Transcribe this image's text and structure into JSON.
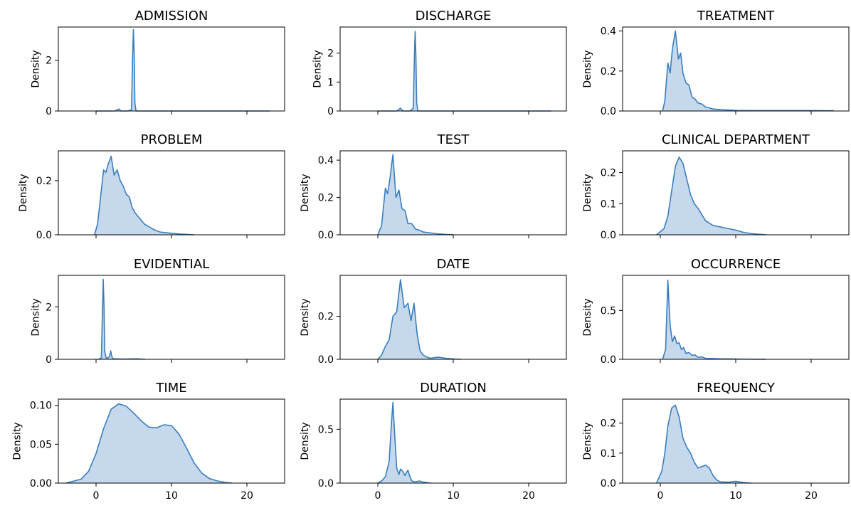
{
  "chart_data": {
    "type": "area",
    "layout": {
      "rows": 4,
      "cols": 3
    },
    "shared_x": {
      "range": [
        -5,
        25
      ],
      "ticks": [
        0,
        10,
        20
      ]
    },
    "ylabel": "Density",
    "color": "#3a7ebf",
    "fill_color": "#c5d8ec",
    "panels": [
      {
        "title": "ADMISSION",
        "ylim": [
          0,
          3.3
        ],
        "yticks": [
          0,
          2
        ],
        "ytick_labels": [
          "0",
          "2"
        ],
        "x": [
          0,
          2.5,
          2.8,
          3.0,
          3.3,
          4.2,
          4.7,
          4.85,
          4.95,
          5.05,
          5.15,
          5.3,
          5.8,
          23
        ],
        "y": [
          0,
          0,
          0.04,
          0.08,
          0,
          0,
          0.05,
          2.2,
          3.2,
          2.3,
          0.3,
          0,
          0,
          0
        ]
      },
      {
        "title": "DISCHARGE",
        "ylim": [
          0,
          2.9
        ],
        "yticks": [
          0,
          1,
          2
        ],
        "ytick_labels": [
          "0",
          "1",
          "2"
        ],
        "x": [
          0,
          2.5,
          2.8,
          3.0,
          3.3,
          4.3,
          4.7,
          4.85,
          4.95,
          5.05,
          5.15,
          5.3,
          5.8,
          23
        ],
        "y": [
          0,
          0,
          0.05,
          0.1,
          0,
          0,
          0.1,
          1.9,
          2.75,
          1.9,
          0.3,
          0,
          0,
          0
        ]
      },
      {
        "title": "TREATMENT",
        "ylim": [
          0,
          0.42
        ],
        "yticks": [
          0,
          0.2,
          0.4
        ],
        "ytick_labels": [
          "0.0",
          "0.2",
          "0.4"
        ],
        "x": [
          0.3,
          0.6,
          1.0,
          1.3,
          1.6,
          2.0,
          2.4,
          2.7,
          3.0,
          3.4,
          3.8,
          4.2,
          4.6,
          5.0,
          5.5,
          6.0,
          6.5,
          7.0,
          8.0,
          9.0,
          10.0,
          12.0,
          15.0,
          20.0,
          23.0
        ],
        "y": [
          0,
          0.05,
          0.24,
          0.19,
          0.31,
          0.4,
          0.26,
          0.29,
          0.19,
          0.14,
          0.13,
          0.07,
          0.06,
          0.04,
          0.035,
          0.02,
          0.015,
          0.01,
          0.007,
          0.005,
          0.003,
          0.002,
          0.002,
          0.002,
          0.001
        ]
      },
      {
        "title": "PROBLEM",
        "ylim": [
          0,
          0.31
        ],
        "yticks": [
          0,
          0.2
        ],
        "ytick_labels": [
          "0.0",
          "0.2"
        ],
        "x": [
          -0.2,
          0.2,
          0.6,
          1.0,
          1.3,
          1.6,
          2.0,
          2.4,
          2.8,
          3.2,
          3.6,
          4.0,
          4.4,
          4.8,
          5.2,
          5.8,
          6.4,
          7.0,
          7.6,
          8.5,
          9.5,
          11.0,
          13.0
        ],
        "y": [
          0,
          0.04,
          0.14,
          0.24,
          0.23,
          0.26,
          0.29,
          0.22,
          0.24,
          0.2,
          0.18,
          0.15,
          0.14,
          0.1,
          0.08,
          0.06,
          0.04,
          0.03,
          0.02,
          0.01,
          0.007,
          0.003,
          0
        ]
      },
      {
        "title": "TEST",
        "ylim": [
          0,
          0.45
        ],
        "yticks": [
          0,
          0.2,
          0.4
        ],
        "ytick_labels": [
          "0.0",
          "0.2",
          "0.4"
        ],
        "x": [
          0,
          0.5,
          1.0,
          1.3,
          1.6,
          2.0,
          2.4,
          2.8,
          3.2,
          3.6,
          4.0,
          4.5,
          5.0,
          5.5,
          6.0,
          7.0,
          8.0,
          9.0,
          10.0
        ],
        "y": [
          0,
          0.05,
          0.25,
          0.22,
          0.3,
          0.43,
          0.2,
          0.24,
          0.14,
          0.13,
          0.06,
          0.06,
          0.03,
          0.025,
          0.015,
          0.01,
          0.005,
          0.002,
          0
        ]
      },
      {
        "title": "CLINICAL DEPARTMENT",
        "ylim": [
          0,
          0.27
        ],
        "yticks": [
          0,
          0.1,
          0.2
        ],
        "ytick_labels": [
          "0.0",
          "0.1",
          "0.2"
        ],
        "x": [
          -0.5,
          0.5,
          1.0,
          1.5,
          2.0,
          2.5,
          3.0,
          3.5,
          4.0,
          4.5,
          5.0,
          5.5,
          6.0,
          7.0,
          8.0,
          9.0,
          10.0,
          11.0,
          12.0,
          13.0,
          14.0
        ],
        "y": [
          0,
          0.02,
          0.06,
          0.14,
          0.22,
          0.25,
          0.23,
          0.18,
          0.13,
          0.1,
          0.085,
          0.065,
          0.045,
          0.03,
          0.025,
          0.02,
          0.015,
          0.008,
          0.004,
          0.002,
          0
        ]
      },
      {
        "title": "EVIDENTIAL",
        "ylim": [
          0,
          3.2
        ],
        "yticks": [
          0,
          2
        ],
        "ytick_labels": [
          "0",
          "2"
        ],
        "x": [
          0.3,
          0.7,
          0.85,
          0.95,
          1.05,
          1.15,
          1.35,
          1.6,
          1.8,
          1.95,
          2.05,
          2.2,
          2.5,
          3.5,
          4.5,
          5.5,
          6.5
        ],
        "y": [
          0,
          0.05,
          1.8,
          3.05,
          2.1,
          0.3,
          0.05,
          0.05,
          0.12,
          0.32,
          0.15,
          0.03,
          0.02,
          0.01,
          0.015,
          0.02,
          0
        ]
      },
      {
        "title": "DATE",
        "ylim": [
          0,
          0.39
        ],
        "yticks": [
          0,
          0.2
        ],
        "ytick_labels": [
          "0.0",
          "0.2"
        ],
        "x": [
          0,
          0.5,
          1.0,
          1.5,
          2.0,
          2.5,
          3.0,
          3.5,
          4.0,
          4.4,
          4.8,
          5.2,
          5.6,
          6.0,
          6.5,
          7.0,
          8.0,
          9.0,
          10.0,
          11.0
        ],
        "y": [
          0,
          0.02,
          0.06,
          0.09,
          0.2,
          0.22,
          0.37,
          0.24,
          0.26,
          0.18,
          0.26,
          0.12,
          0.04,
          0.02,
          0.01,
          0.005,
          0.01,
          0.005,
          0.002,
          0
        ]
      },
      {
        "title": "OCCURRENCE",
        "ylim": [
          0,
          0.86
        ],
        "yticks": [
          0,
          0.5
        ],
        "ytick_labels": [
          "0.0",
          "0.5"
        ],
        "x": [
          0.3,
          0.7,
          1.0,
          1.3,
          1.6,
          1.9,
          2.2,
          2.5,
          2.8,
          3.1,
          3.4,
          3.8,
          4.2,
          4.6,
          5.0,
          5.5,
          6.0,
          7.0,
          8.0,
          10.0,
          12.0,
          14.0
        ],
        "y": [
          0,
          0.1,
          0.81,
          0.35,
          0.18,
          0.24,
          0.16,
          0.17,
          0.1,
          0.12,
          0.06,
          0.07,
          0.04,
          0.045,
          0.02,
          0.025,
          0.01,
          0.008,
          0.005,
          0.003,
          0.001,
          0
        ]
      },
      {
        "title": "TIME",
        "ylim": [
          0,
          0.108
        ],
        "yticks": [
          0,
          0.05,
          0.1
        ],
        "ytick_labels": [
          "0.00",
          "0.05",
          "0.10"
        ],
        "x": [
          -4.0,
          -2.0,
          -1.0,
          0.0,
          1.0,
          2.0,
          3.0,
          4.0,
          5.0,
          6.0,
          7.0,
          8.0,
          9.0,
          10.0,
          11.0,
          12.0,
          13.0,
          14.0,
          15.0,
          16.0,
          17.0,
          18.0
        ],
        "y": [
          0,
          0.005,
          0.015,
          0.038,
          0.07,
          0.095,
          0.102,
          0.099,
          0.09,
          0.08,
          0.072,
          0.071,
          0.075,
          0.074,
          0.063,
          0.045,
          0.026,
          0.013,
          0.006,
          0.003,
          0.001,
          0
        ]
      },
      {
        "title": "DURATION",
        "ylim": [
          0,
          0.78
        ],
        "yticks": [
          0,
          0.5
        ],
        "ytick_labels": [
          "0.0",
          "0.5"
        ],
        "x": [
          0,
          0.5,
          1.0,
          1.5,
          1.8,
          2.0,
          2.2,
          2.5,
          2.8,
          3.0,
          3.3,
          3.6,
          3.8,
          4.0,
          4.2,
          4.5,
          5.0,
          5.5,
          6.0,
          7.0
        ],
        "y": [
          0,
          0.02,
          0.06,
          0.2,
          0.55,
          0.75,
          0.5,
          0.14,
          0.08,
          0.13,
          0.11,
          0.07,
          0.1,
          0.12,
          0.07,
          0.02,
          0.01,
          0.02,
          0.01,
          0
        ]
      },
      {
        "title": "FREQUENCY",
        "ylim": [
          0,
          0.28
        ],
        "yticks": [
          0,
          0.1,
          0.2
        ],
        "ytick_labels": [
          "0.0",
          "0.1",
          "0.2"
        ],
        "x": [
          -0.5,
          0.2,
          0.6,
          1.0,
          1.5,
          2.0,
          2.5,
          3.0,
          3.5,
          4.0,
          4.5,
          5.0,
          5.5,
          6.0,
          6.5,
          7.0,
          7.5,
          8.0,
          9.0,
          10.0,
          11.0,
          12.0
        ],
        "y": [
          0,
          0.04,
          0.1,
          0.19,
          0.25,
          0.26,
          0.22,
          0.15,
          0.12,
          0.1,
          0.07,
          0.05,
          0.055,
          0.06,
          0.05,
          0.025,
          0.01,
          0.004,
          0.003,
          0.006,
          0.002,
          0
        ]
      }
    ]
  }
}
